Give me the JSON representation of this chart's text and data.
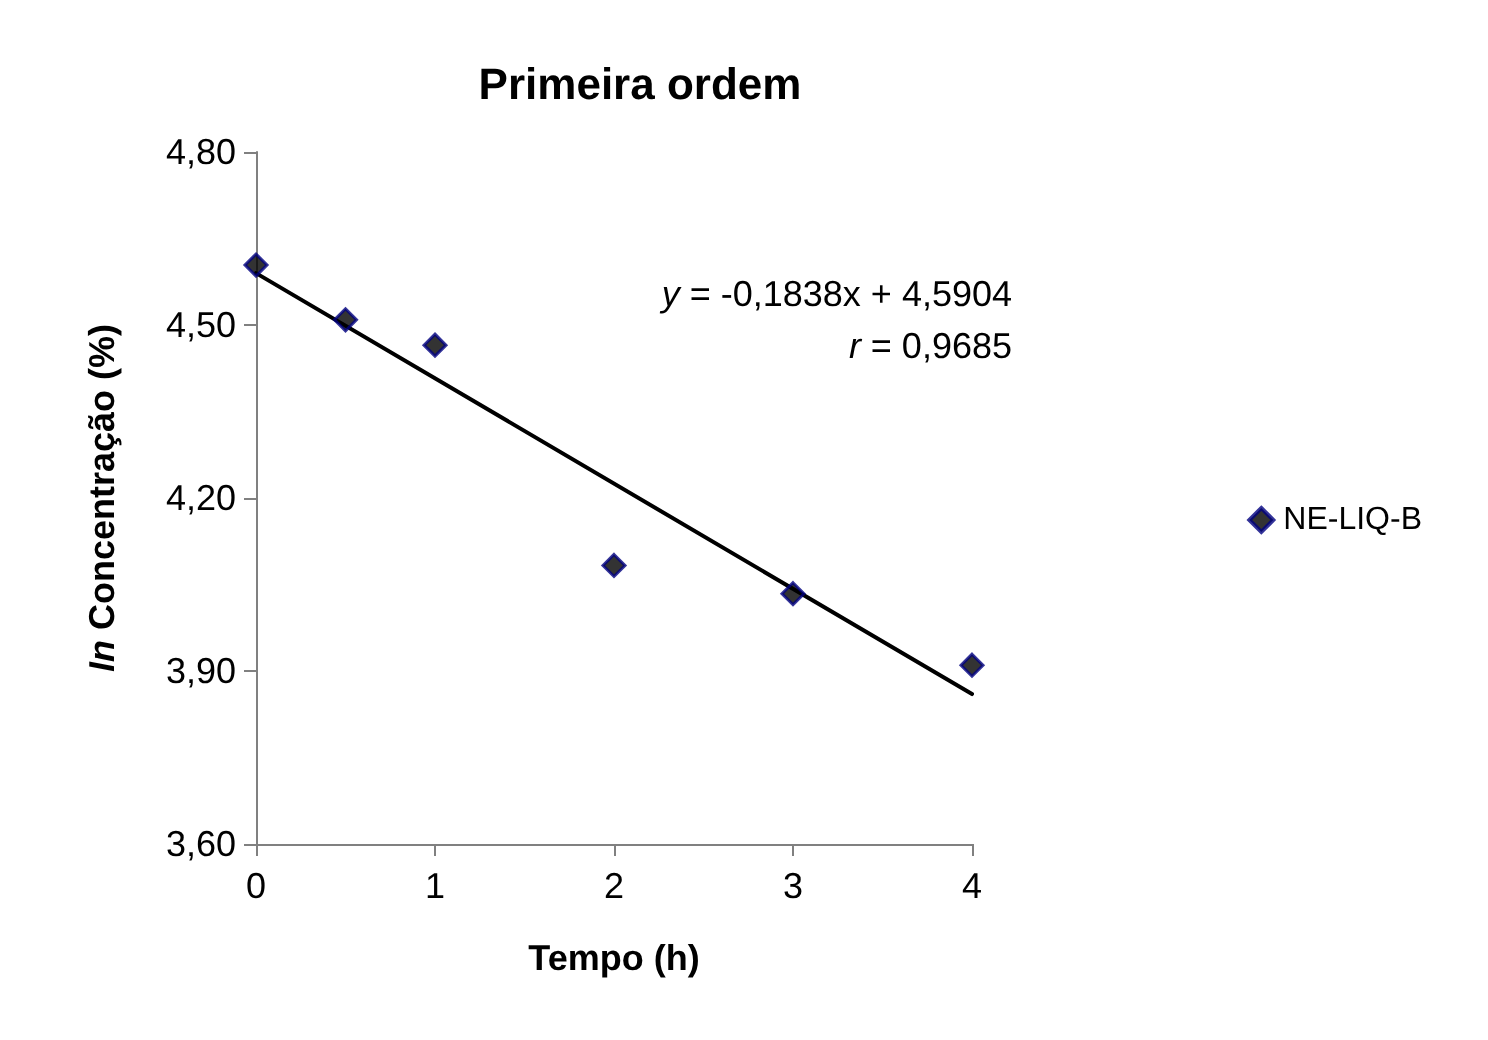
{
  "chart_data": {
    "type": "scatter",
    "title": "Primeira ordem",
    "xlabel": "Tempo (h)",
    "ylabel": "In Concentração (%)",
    "x": [
      0,
      0.5,
      1,
      2,
      3,
      4
    ],
    "series": [
      {
        "name": "NE-LIQ-B",
        "color": "#000080",
        "values": [
          4.604,
          4.509,
          4.465,
          4.083,
          4.034,
          3.91
        ],
        "marker": "diamond"
      },
      {
        "type": "line",
        "color": "#000000",
        "x": [
          0,
          4
        ],
        "values": [
          4.59,
          3.86
        ],
        "marker": "none",
        "line_style": "solid"
      }
    ],
    "annotations": [
      "y = -0,1838x + 4,5904",
      "r = 0,9685"
    ],
    "xlim": [
      0,
      4
    ],
    "xticks": [
      0,
      1,
      2,
      3,
      4
    ],
    "ylim": [
      3.6,
      4.8
    ],
    "yticks": [
      {
        "value": 3.6,
        "label": "3,60"
      },
      {
        "value": 3.9,
        "label": "3,90"
      },
      {
        "value": 4.2,
        "label": "4,20"
      },
      {
        "value": 4.5,
        "label": "4,50"
      },
      {
        "value": 4.8,
        "label": "4,80"
      }
    ],
    "grid": false,
    "legend": "right"
  }
}
